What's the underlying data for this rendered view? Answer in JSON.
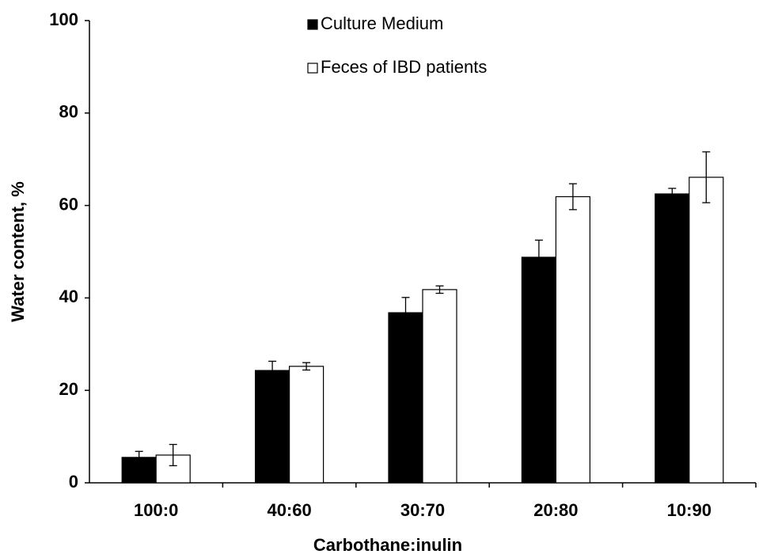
{
  "chart_data": {
    "type": "bar",
    "xlabel": "Carbothane:inulin",
    "ylabel": "Water content, %",
    "categories": [
      "100:0",
      "40:60",
      "30:70",
      "20:80",
      "10:90"
    ],
    "series": [
      {
        "name": "Culture Medium",
        "color": "#000000",
        "values": [
          5.5,
          24.3,
          36.8,
          48.8,
          62.5
        ],
        "errors": [
          1.3,
          2.0,
          3.3,
          3.7,
          1.2
        ]
      },
      {
        "name": "Feces of IBD patients",
        "color": "#ffffff",
        "values": [
          6.0,
          25.2,
          41.8,
          61.9,
          66.1
        ],
        "errors": [
          2.3,
          0.8,
          0.8,
          2.8,
          5.5
        ]
      }
    ],
    "ylim": [
      0,
      100
    ],
    "yticks": [
      0,
      20,
      40,
      60,
      80,
      100
    ],
    "grid": false
  }
}
